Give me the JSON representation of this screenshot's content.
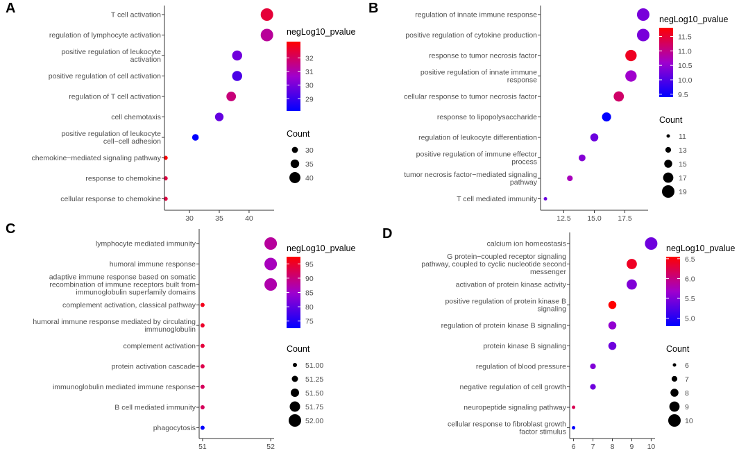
{
  "chart_data": [
    {
      "panel": "A",
      "type": "scatter",
      "title": "",
      "xlabel": "",
      "ylabel": "",
      "xlim": [
        25.8,
        44.2
      ],
      "xticks": [
        30,
        35,
        40
      ],
      "xtick_labels": [
        "30",
        "35",
        "40"
      ],
      "color_legend": {
        "title": "negLog10_pvalue",
        "min": 28.1,
        "max": 33.2,
        "ticks": [
          29,
          30,
          31,
          32
        ],
        "tick_labels": [
          "29",
          "30",
          "31",
          "32"
        ]
      },
      "size_legend": {
        "title": "Count",
        "min": 26,
        "max": 43,
        "values": [
          30,
          35,
          40
        ],
        "labels": [
          "30",
          "35",
          "40"
        ]
      },
      "points": [
        {
          "term": "T cell activation",
          "count": 43,
          "p": 32.5
        },
        {
          "term": "regulation of lymphocyte activation",
          "count": 43,
          "p": 31.3
        },
        {
          "term": "positive regulation of leukocyte activation",
          "count": 38,
          "p": 29.9
        },
        {
          "term": "positive regulation of cell activation",
          "count": 38,
          "p": 29.3
        },
        {
          "term": "regulation of T cell activation",
          "count": 37,
          "p": 31.7
        },
        {
          "term": "cell chemotaxis",
          "count": 35,
          "p": 29.7
        },
        {
          "term": "positive regulation of leukocyte cell−cell adhesion",
          "count": 31,
          "p": 28.1
        },
        {
          "term": "chemokine−mediated signaling pathway",
          "count": 26,
          "p": 33.2
        },
        {
          "term": "response to chemokine",
          "count": 26,
          "p": 32.4
        },
        {
          "term": "cellular response to chemokine",
          "count": 26,
          "p": 32.4
        }
      ]
    },
    {
      "panel": "B",
      "type": "scatter",
      "title": "",
      "xlabel": "",
      "ylabel": "",
      "xlim": [
        10.6,
        19.4
      ],
      "xticks": [
        12.5,
        15.0,
        17.5
      ],
      "xtick_labels": [
        "12.5",
        "15.0",
        "17.5"
      ],
      "color_legend": {
        "title": "negLog10_pvalue",
        "min": 9.4,
        "max": 11.8,
        "ticks": [
          9.5,
          10.0,
          10.5,
          11.0,
          11.5
        ],
        "tick_labels": [
          "9.5",
          "10.0",
          "10.5",
          "11.0",
          "11.5"
        ]
      },
      "size_legend": {
        "title": "Count",
        "min": 11,
        "max": 19,
        "values": [
          11,
          13,
          15,
          17,
          19
        ],
        "labels": [
          "11",
          "13",
          "15",
          "17",
          "19"
        ]
      },
      "points": [
        {
          "term": "regulation of innate immune response",
          "count": 19,
          "p": 10.3
        },
        {
          "term": "positive regulation of cytokine production",
          "count": 19,
          "p": 10.3
        },
        {
          "term": "response to tumor necrosis factor",
          "count": 18,
          "p": 11.6
        },
        {
          "term": "positive regulation of innate immune response",
          "count": 18,
          "p": 10.6
        },
        {
          "term": "cellular response to tumor necrosis factor",
          "count": 17,
          "p": 11.2
        },
        {
          "term": "response to lipopolysaccharide",
          "count": 16,
          "p": 9.4
        },
        {
          "term": "regulation of leukocyte differentiation",
          "count": 15,
          "p": 10.2
        },
        {
          "term": "positive regulation of immune effector process",
          "count": 14,
          "p": 10.4
        },
        {
          "term": "tumor necrosis factor−mediated signaling pathway",
          "count": 13,
          "p": 10.7
        },
        {
          "term": "T cell mediated immunity",
          "count": 11,
          "p": 10.2
        }
      ]
    },
    {
      "panel": "C",
      "type": "scatter",
      "title": "",
      "xlabel": "",
      "ylabel": "",
      "xlim": [
        50.95,
        52.05
      ],
      "xticks": [
        51,
        52
      ],
      "xtick_labels": [
        "51",
        "52"
      ],
      "color_legend": {
        "title": "negLog10_pvalue",
        "min": 72.5,
        "max": 97.5,
        "ticks": [
          75,
          80,
          85,
          90,
          95
        ],
        "tick_labels": [
          "75",
          "80",
          "85",
          "90",
          "95"
        ]
      },
      "size_legend": {
        "title": "Count",
        "min": 51,
        "max": 52,
        "values": [
          51.0,
          51.25,
          51.5,
          51.75,
          52.0
        ],
        "labels": [
          "51.00",
          "51.25",
          "51.50",
          "51.75",
          "52.00"
        ]
      },
      "points": [
        {
          "term": "lymphocyte mediated immunity",
          "count": 52,
          "p": 88
        },
        {
          "term": "humoral immune response",
          "count": 52,
          "p": 86
        },
        {
          "term": "adaptive immune response based on somatic recombination of immune receptors built from immunoglobulin superfamily domains",
          "count": 52,
          "p": 87
        },
        {
          "term": "complement activation, classical pathway",
          "count": 51,
          "p": 96
        },
        {
          "term": "humoral immune response mediated by circulating immunoglobulin",
          "count": 51,
          "p": 95
        },
        {
          "term": "complement activation",
          "count": 51,
          "p": 94
        },
        {
          "term": "protein activation cascade",
          "count": 51,
          "p": 93
        },
        {
          "term": "immunoglobulin mediated immune response",
          "count": 51,
          "p": 92
        },
        {
          "term": "B cell mediated immunity",
          "count": 51,
          "p": 92
        },
        {
          "term": "phagocytosis",
          "count": 51,
          "p": 72.5
        }
      ]
    },
    {
      "panel": "D",
      "type": "scatter",
      "title": "",
      "xlabel": "",
      "ylabel": "",
      "xlim": [
        5.8,
        10.2
      ],
      "xticks": [
        6,
        7,
        8,
        9,
        10
      ],
      "xtick_labels": [
        "6",
        "7",
        "8",
        "9",
        "10"
      ],
      "color_legend": {
        "title": "negLog10_pvalue",
        "min": 4.8,
        "max": 6.55,
        "ticks": [
          5.0,
          5.5,
          6.0,
          6.5
        ],
        "tick_labels": [
          "5.0",
          "5.5",
          "6.0",
          "6.5"
        ]
      },
      "size_legend": {
        "title": "Count",
        "min": 6,
        "max": 10,
        "values": [
          6,
          7,
          8,
          9,
          10
        ],
        "labels": [
          "6",
          "7",
          "8",
          "9",
          "10"
        ]
      },
      "points": [
        {
          "term": "calcium ion homeostasis",
          "count": 10,
          "p": 5.4
        },
        {
          "term": "G protein−coupled receptor signaling pathway, coupled to cyclic nucleotide second messenger",
          "count": 9,
          "p": 6.4
        },
        {
          "term": "activation of protein kinase activity",
          "count": 9,
          "p": 5.5
        },
        {
          "term": "positive regulation of protein kinase B signaling",
          "count": 8,
          "p": 6.55
        },
        {
          "term": "regulation of protein kinase B signaling",
          "count": 8,
          "p": 5.6
        },
        {
          "term": "protein kinase B signaling",
          "count": 8,
          "p": 5.4
        },
        {
          "term": "regulation of blood pressure",
          "count": 7,
          "p": 5.5
        },
        {
          "term": "negative regulation of cell growth",
          "count": 7,
          "p": 5.4
        },
        {
          "term": "neuropeptide signaling pathway",
          "count": 6,
          "p": 6.2
        },
        {
          "term": "cellular response to fibroblast growth factor stimulus",
          "count": 6,
          "p": 4.8
        }
      ]
    }
  ],
  "colors": {
    "low": "#0000ff",
    "high": "#ff0000"
  }
}
